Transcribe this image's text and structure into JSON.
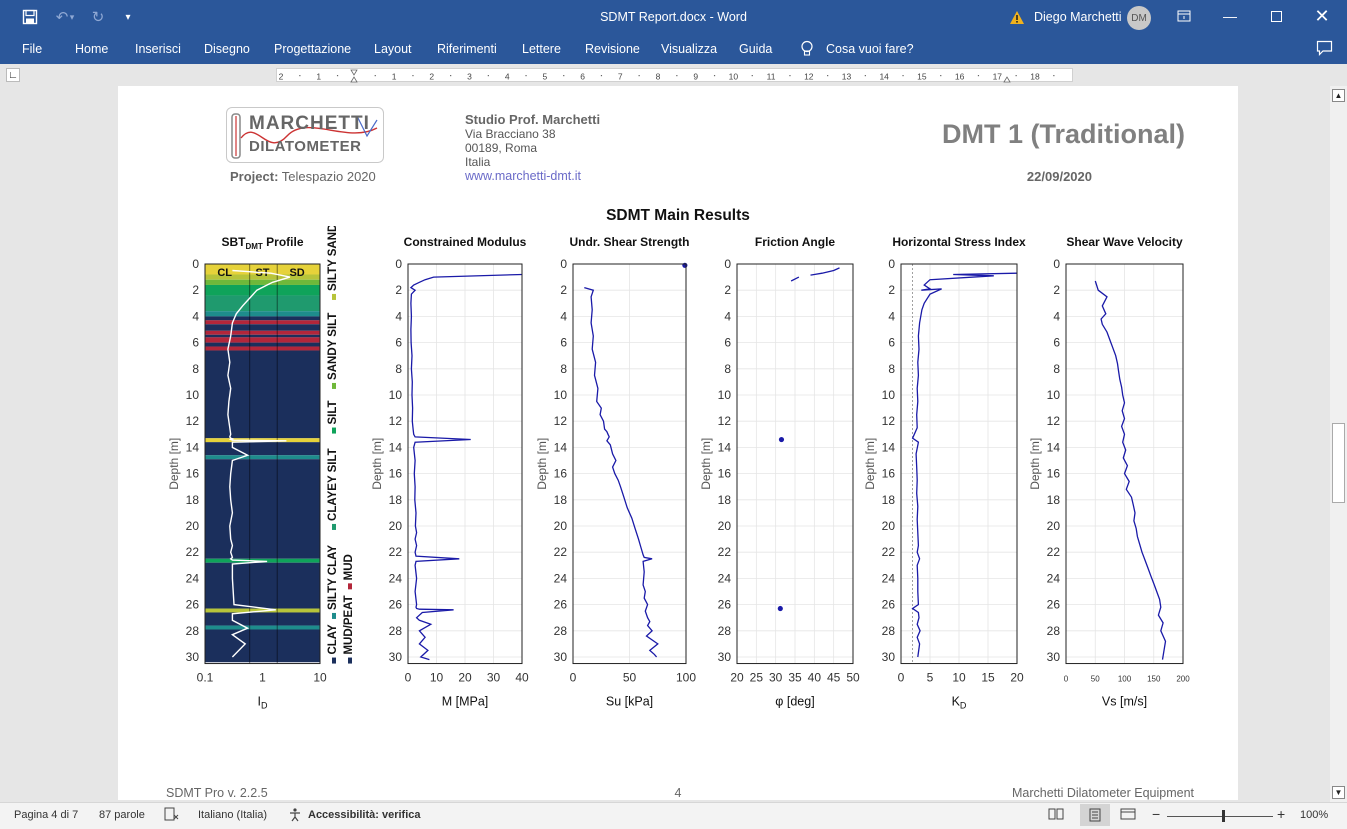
{
  "window": {
    "doc_title": "SDMT Report.docx  -  Word",
    "user": "Diego Marchetti",
    "avatar": "DM"
  },
  "ribbon": {
    "file": "File",
    "tabs": [
      "Home",
      "Inserisci",
      "Disegno",
      "Progettazione",
      "Layout",
      "Riferimenti",
      "Lettere",
      "Revisione",
      "Visualizza",
      "Guida"
    ],
    "tell_me": "Cosa vuoi fare?"
  },
  "ruler": {
    "numbers": [
      "2",
      "1",
      "",
      "1",
      "2",
      "3",
      "4",
      "5",
      "6",
      "7",
      "8",
      "9",
      "10",
      "11",
      "12",
      "13",
      "14",
      "15",
      "16",
      "17",
      "18"
    ]
  },
  "report": {
    "logo_line1": "MARCHETTI",
    "logo_line2": "DILATOMETER",
    "project_label": "Project:",
    "project_value": "Telespazio 2020",
    "studio": "Studio Prof. Marchetti",
    "address1": "Via Bracciano 38",
    "address2": "00189, Roma",
    "address3": "Italia",
    "website": "www.marchetti-dmt.it",
    "title": "DMT 1 (Traditional)",
    "date": "22/09/2020",
    "main_title": "SDMT Main Results",
    "footer_left": "SDMT Pro v. 2.2.5",
    "footer_page": "4",
    "footer_right": "Marchetti Dilatometer Equipment"
  },
  "status": {
    "page": "Pagina 4 di 7",
    "words": "87 parole",
    "language": "Italiano (Italia)",
    "accessibility": "Accessibilità: verifica",
    "zoom": "100%"
  },
  "colors": {
    "word_blue": "#2b579a",
    "line_blue": "#1a1aa8",
    "sbt_navy": "#1b2f5c"
  },
  "chart_data": [
    {
      "type": "area",
      "title": "SBTDMT Profile",
      "xlabel": "ID",
      "ylabel": "Depth [m]",
      "xscale": "log",
      "xlim": [
        0.1,
        10
      ],
      "ylim": [
        30,
        0
      ],
      "x_ticks": [
        "0.1",
        "1",
        "10"
      ],
      "y_ticks": [
        "0",
        "2",
        "4",
        "6",
        "8",
        "10",
        "12",
        "14",
        "16",
        "18",
        "20",
        "22",
        "24",
        "26",
        "28",
        "30"
      ],
      "zone_labels": [
        "CL",
        "ST",
        "SD"
      ],
      "legend": [
        "CLAY",
        "SILTY CLAY",
        "CLAYEY SILT",
        "SILT",
        "SANDY SILT",
        "SILTY SAND",
        "SAND",
        "MUD/PEAT",
        "MUD"
      ],
      "legend_colors": [
        "#1b2f5c",
        "#1e8c8c",
        "#1f9a6e",
        "#0fa35a",
        "#6fb83a",
        "#b7c43a",
        "#e6d23a",
        "#1b2f5c",
        "#b3263a"
      ],
      "layers": [
        {
          "top": 0.0,
          "bottom": 0.8,
          "type": "SAND",
          "color": "#e6d23a"
        },
        {
          "top": 0.8,
          "bottom": 1.2,
          "type": "SILTY SAND",
          "color": "#b7c43a"
        },
        {
          "top": 1.2,
          "bottom": 1.6,
          "type": "SANDY SILT",
          "color": "#6fb83a"
        },
        {
          "top": 1.6,
          "bottom": 2.4,
          "type": "SILT",
          "color": "#0fa35a"
        },
        {
          "top": 2.4,
          "bottom": 3.6,
          "type": "CLAYEY SILT",
          "color": "#1f9a6e"
        },
        {
          "top": 3.6,
          "bottom": 4.0,
          "type": "SILTY CLAY",
          "color": "#1e8c8c"
        },
        {
          "top": 4.0,
          "bottom": 4.3,
          "type": "CLAY",
          "color": "#1b2f5c"
        },
        {
          "top": 4.3,
          "bottom": 4.6,
          "type": "MUD",
          "color": "#b3263a"
        },
        {
          "top": 4.6,
          "bottom": 5.1,
          "type": "CLAY",
          "color": "#1b2f5c"
        },
        {
          "top": 5.1,
          "bottom": 5.4,
          "type": "MUD",
          "color": "#b3263a"
        },
        {
          "top": 5.4,
          "bottom": 5.6,
          "type": "CLAY",
          "color": "#1b2f5c"
        },
        {
          "top": 5.6,
          "bottom": 6.0,
          "type": "MUD",
          "color": "#b3263a"
        },
        {
          "top": 6.0,
          "bottom": 6.3,
          "type": "CLAY",
          "color": "#1b2f5c"
        },
        {
          "top": 6.3,
          "bottom": 6.6,
          "type": "MUD",
          "color": "#b3263a"
        },
        {
          "top": 6.6,
          "bottom": 13.3,
          "type": "CLAY",
          "color": "#1b2f5c"
        },
        {
          "top": 13.3,
          "bottom": 13.6,
          "type": "SAND",
          "color": "#e6d23a"
        },
        {
          "top": 13.6,
          "bottom": 14.6,
          "type": "CLAY",
          "color": "#1b2f5c"
        },
        {
          "top": 14.6,
          "bottom": 14.9,
          "type": "SILTY CLAY",
          "color": "#1e8c8c"
        },
        {
          "top": 14.9,
          "bottom": 22.5,
          "type": "CLAY",
          "color": "#1b2f5c"
        },
        {
          "top": 22.5,
          "bottom": 22.8,
          "type": "SILT",
          "color": "#0fa35a"
        },
        {
          "top": 22.8,
          "bottom": 26.3,
          "type": "CLAY",
          "color": "#1b2f5c"
        },
        {
          "top": 26.3,
          "bottom": 26.6,
          "type": "SILTY SAND",
          "color": "#b7c43a"
        },
        {
          "top": 26.6,
          "bottom": 27.6,
          "type": "CLAY",
          "color": "#1b2f5c"
        },
        {
          "top": 27.6,
          "bottom": 27.9,
          "type": "SILTY CLAY",
          "color": "#1e8c8c"
        },
        {
          "top": 27.9,
          "bottom": 30.4,
          "type": "CLAY",
          "color": "#1b2f5c"
        }
      ],
      "series": [
        {
          "x": [
            0.3,
            1.4,
            3.0,
            1.5,
            1.2,
            0.8,
            0.6,
            0.45,
            0.35,
            0.3,
            0.28,
            0.25,
            0.27,
            0.25,
            0.28,
            0.26,
            0.25,
            0.27,
            0.28,
            0.27,
            0.28,
            0.3,
            0.28,
            0.3,
            2.6,
            0.3,
            0.3,
            0.55,
            0.3,
            0.28,
            0.27,
            0.28,
            0.3,
            0.27,
            0.28,
            0.3,
            0.28,
            0.3,
            0.28,
            0.3,
            1.2,
            0.3,
            0.3,
            0.32,
            1.7,
            0.3,
            0.3,
            0.55,
            0.3,
            0.5,
            0.3
          ],
          "y": [
            0.5,
            0.7,
            1.0,
            1.4,
            1.6,
            2.0,
            2.6,
            3.2,
            3.8,
            4.5,
            5.5,
            6.5,
            7.5,
            8.5,
            9.5,
            10.5,
            11.5,
            12.5,
            13.0,
            13.2,
            13.3,
            13.35,
            13.4,
            13.45,
            13.5,
            13.6,
            14.0,
            14.6,
            15.0,
            16.0,
            17.0,
            18.0,
            19.0,
            20.0,
            21.0,
            21.5,
            22.0,
            22.4,
            22.5,
            22.6,
            22.7,
            22.9,
            24.0,
            26.0,
            26.4,
            26.7,
            27.2,
            27.8,
            28.3,
            29.0,
            30.0
          ]
        }
      ]
    },
    {
      "type": "line",
      "title": "Constrained Modulus",
      "xlabel": "M [MPa]",
      "ylabel": "Depth [m]",
      "xlim": [
        0,
        40
      ],
      "ylim": [
        30,
        0
      ],
      "x_ticks": [
        "0",
        "10",
        "20",
        "30",
        "40"
      ],
      "series": [
        {
          "x": [
            40,
            9,
            6,
            4,
            2,
            1,
            2.5,
            1.2,
            1.0,
            1.2,
            1.0,
            1.1,
            1.4,
            1.2,
            1.5,
            1.4,
            1.6,
            1.5,
            1.8,
            2.0,
            2.5,
            22,
            2.5,
            2.0,
            2.5,
            2.2,
            2.5,
            2.4,
            2.8,
            2.6,
            3.0,
            2.5,
            3.0,
            2.5,
            2.8,
            18,
            2.8,
            2.5,
            3.0,
            2.5,
            3.0,
            2.8,
            3.0,
            4.0,
            16,
            5.0,
            3.0,
            4.0,
            8.0,
            4.0,
            6.0,
            4.0,
            7.0,
            4.5,
            7.5
          ],
          "y": [
            0.8,
            1.0,
            1.2,
            1.4,
            1.6,
            1.8,
            2.0,
            2.3,
            3.0,
            4.0,
            5.0,
            6.0,
            7.0,
            8.0,
            9.0,
            10.0,
            11.0,
            12.0,
            12.6,
            13.0,
            13.2,
            13.4,
            13.6,
            14.0,
            15.0,
            16.0,
            17.0,
            18.0,
            19.0,
            20.0,
            20.5,
            21.0,
            21.5,
            22.0,
            22.3,
            22.5,
            22.7,
            23.0,
            24.0,
            25.0,
            26.0,
            26.2,
            26.3,
            26.35,
            26.4,
            26.6,
            27.0,
            27.2,
            27.5,
            28.0,
            28.5,
            29.0,
            29.5,
            30.0,
            30.2
          ]
        }
      ]
    },
    {
      "type": "line",
      "title": "Undr. Shear Strength",
      "xlabel": "Su [kPa]",
      "ylabel": "Depth [m]",
      "xlim": [
        0,
        100
      ],
      "ylim": [
        30,
        0
      ],
      "x_ticks": [
        "0",
        "50",
        "100"
      ],
      "points": [
        {
          "x": 99,
          "y": 0.1
        }
      ],
      "series": [
        {
          "x": [
            10,
            18,
            16,
            17,
            16,
            18,
            17,
            20,
            19,
            22,
            21,
            25,
            24,
            27,
            28,
            30,
            31,
            32,
            30,
            33,
            35,
            38,
            35,
            37,
            40,
            42,
            45,
            48,
            52,
            55,
            58,
            60,
            62,
            63,
            70,
            62,
            63,
            62,
            64,
            63,
            66,
            64,
            66,
            68,
            66,
            70,
            65,
            75,
            68,
            72,
            74
          ],
          "y": [
            1.8,
            2.0,
            2.5,
            3.5,
            4.5,
            5.5,
            6.5,
            7.5,
            8.5,
            9.5,
            10.5,
            11.0,
            11.5,
            12.0,
            12.6,
            12.8,
            13.0,
            13.2,
            13.5,
            13.8,
            14.5,
            15.0,
            15.5,
            16.0,
            16.5,
            17.0,
            17.8,
            18.6,
            19.4,
            20.2,
            21.0,
            21.6,
            22.2,
            22.4,
            22.5,
            22.7,
            23.5,
            24.5,
            25.0,
            25.5,
            26.0,
            26.5,
            27.0,
            27.3,
            27.6,
            28.0,
            28.4,
            29.0,
            29.5,
            29.8,
            30.0
          ]
        }
      ]
    },
    {
      "type": "scatter",
      "title": "Friction Angle",
      "xlabel": "φ [deg]",
      "ylabel": "Depth [m]",
      "xlim": [
        20,
        50
      ],
      "ylim": [
        30,
        0
      ],
      "x_ticks": [
        "20",
        "25",
        "30",
        "35",
        "40",
        "45",
        "50"
      ],
      "series": [
        {
          "x": [
            46.5,
            45,
            42,
            40,
            39
          ],
          "y": [
            0.3,
            0.5,
            0.7,
            0.8,
            0.85
          ]
        },
        {
          "x": [
            36,
            34
          ],
          "y": [
            1.0,
            1.3
          ]
        }
      ],
      "points": [
        {
          "x": 31.5,
          "y": 13.4
        },
        {
          "x": 31.2,
          "y": 26.3
        }
      ]
    },
    {
      "type": "line",
      "title": "Horizontal Stress Index",
      "xlabel": "KD",
      "ylabel": "Depth [m]",
      "xlim": [
        0,
        20
      ],
      "ylim": [
        30,
        0
      ],
      "x_ticks": [
        "0",
        "5",
        "10",
        "15",
        "20"
      ],
      "reference_x": 2,
      "series": [
        {
          "x": [
            20,
            9,
            16,
            5,
            4,
            5,
            3.5,
            7,
            5,
            4,
            3.6,
            3.2,
            3.0,
            3.1,
            2.9,
            3.0,
            2.8,
            2.9,
            2.7,
            2.8,
            2.0,
            3.0,
            2.6,
            2.7,
            2.8,
            2.7,
            2.9,
            2.8,
            2.9,
            3.0,
            2.8,
            3.2,
            2.8,
            2.9,
            2.9,
            3.0,
            2.0,
            3.0,
            3.1,
            2.8,
            3.3,
            2.8,
            3.2,
            2.9
          ],
          "y": [
            0.7,
            0.8,
            0.9,
            1.2,
            1.6,
            1.9,
            2.0,
            1.9,
            2.3,
            3.0,
            3.5,
            4.5,
            5.5,
            6.5,
            7.5,
            8.5,
            9.5,
            10.5,
            11.5,
            12.5,
            13.3,
            13.6,
            14.5,
            15.5,
            16.5,
            17.5,
            18.5,
            19.5,
            20.5,
            21.5,
            22.0,
            22.5,
            23.0,
            24.0,
            25.0,
            26.0,
            26.3,
            26.6,
            27.0,
            27.5,
            28.0,
            28.5,
            29.0,
            30.0
          ]
        }
      ]
    },
    {
      "type": "line",
      "title": "Shear Wave Velocity",
      "xlabel": "Vs [m/s]",
      "ylabel": "Depth [m]",
      "xlim": [
        0,
        200
      ],
      "ylim": [
        30,
        0
      ],
      "x_ticks": [
        "0",
        "50",
        "100",
        "150",
        "200"
      ],
      "series": [
        {
          "x": [
            50,
            55,
            70,
            62,
            68,
            60,
            62,
            70,
            75,
            80,
            85,
            88,
            90,
            92,
            95,
            97,
            100,
            96,
            100,
            95,
            100,
            97,
            102,
            98,
            105,
            100,
            108,
            103,
            112,
            115,
            118,
            116,
            120,
            122,
            126,
            130,
            135,
            140,
            145,
            150,
            155,
            160,
            162,
            158,
            166,
            162,
            170,
            165
          ],
          "y": [
            1.3,
            2.0,
            2.5,
            3.2,
            3.8,
            4.2,
            4.6,
            5.2,
            5.8,
            6.4,
            7.0,
            7.6,
            8.2,
            8.8,
            9.4,
            10.0,
            10.6,
            11.2,
            11.8,
            12.4,
            13.0,
            13.6,
            14.2,
            14.8,
            15.4,
            16.0,
            16.6,
            17.2,
            17.8,
            18.4,
            19.0,
            19.6,
            20.2,
            20.8,
            21.4,
            22.0,
            22.6,
            23.2,
            23.8,
            24.4,
            25.0,
            25.6,
            26.2,
            26.8,
            27.4,
            28.0,
            28.8,
            30.2
          ]
        }
      ]
    }
  ]
}
